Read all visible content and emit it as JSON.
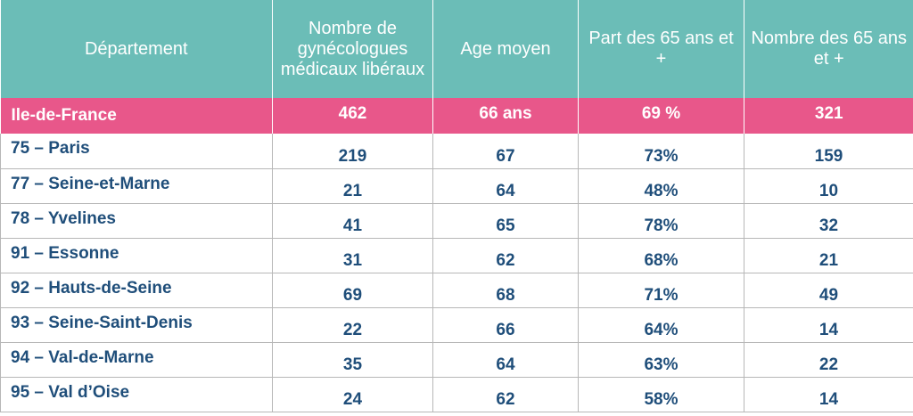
{
  "colors": {
    "header_bg": "#6bbdb7",
    "region_bg": "#e8578a",
    "text_blue": "#1f4e7a"
  },
  "header": {
    "departement": "Département",
    "nombre": "Nombre de gynécologues médicaux libéraux",
    "age": "Age moyen",
    "part": "Part des 65 ans et +",
    "nombre65": "Nombre des 65 ans et +"
  },
  "region": {
    "name": "Ile-de-France",
    "nombre": "462",
    "age": "66 ans",
    "part": "69 %",
    "nombre65": "321"
  },
  "rows": [
    {
      "name": "75 – Paris",
      "nombre": "219",
      "age": "67",
      "part": "73%",
      "nombre65": "159"
    },
    {
      "name": "77 – Seine-et-Marne",
      "nombre": "21",
      "age": "64",
      "part": "48%",
      "nombre65": "10"
    },
    {
      "name": "78 – Yvelines",
      "nombre": "41",
      "age": "65",
      "part": "78%",
      "nombre65": "32"
    },
    {
      "name": "91 – Essonne",
      "nombre": "31",
      "age": "62",
      "part": "68%",
      "nombre65": "21"
    },
    {
      "name": "92 – Hauts-de-Seine",
      "nombre": "69",
      "age": "68",
      "part": "71%",
      "nombre65": "49"
    },
    {
      "name": "93 – Seine-Saint-Denis",
      "nombre": "22",
      "age": "66",
      "part": "64%",
      "nombre65": "14"
    },
    {
      "name": "94 – Val-de-Marne",
      "nombre": "35",
      "age": "64",
      "part": "63%",
      "nombre65": "22"
    },
    {
      "name": "95 – Val d’Oise",
      "nombre": "24",
      "age": "62",
      "part": "58%",
      "nombre65": "14"
    }
  ]
}
